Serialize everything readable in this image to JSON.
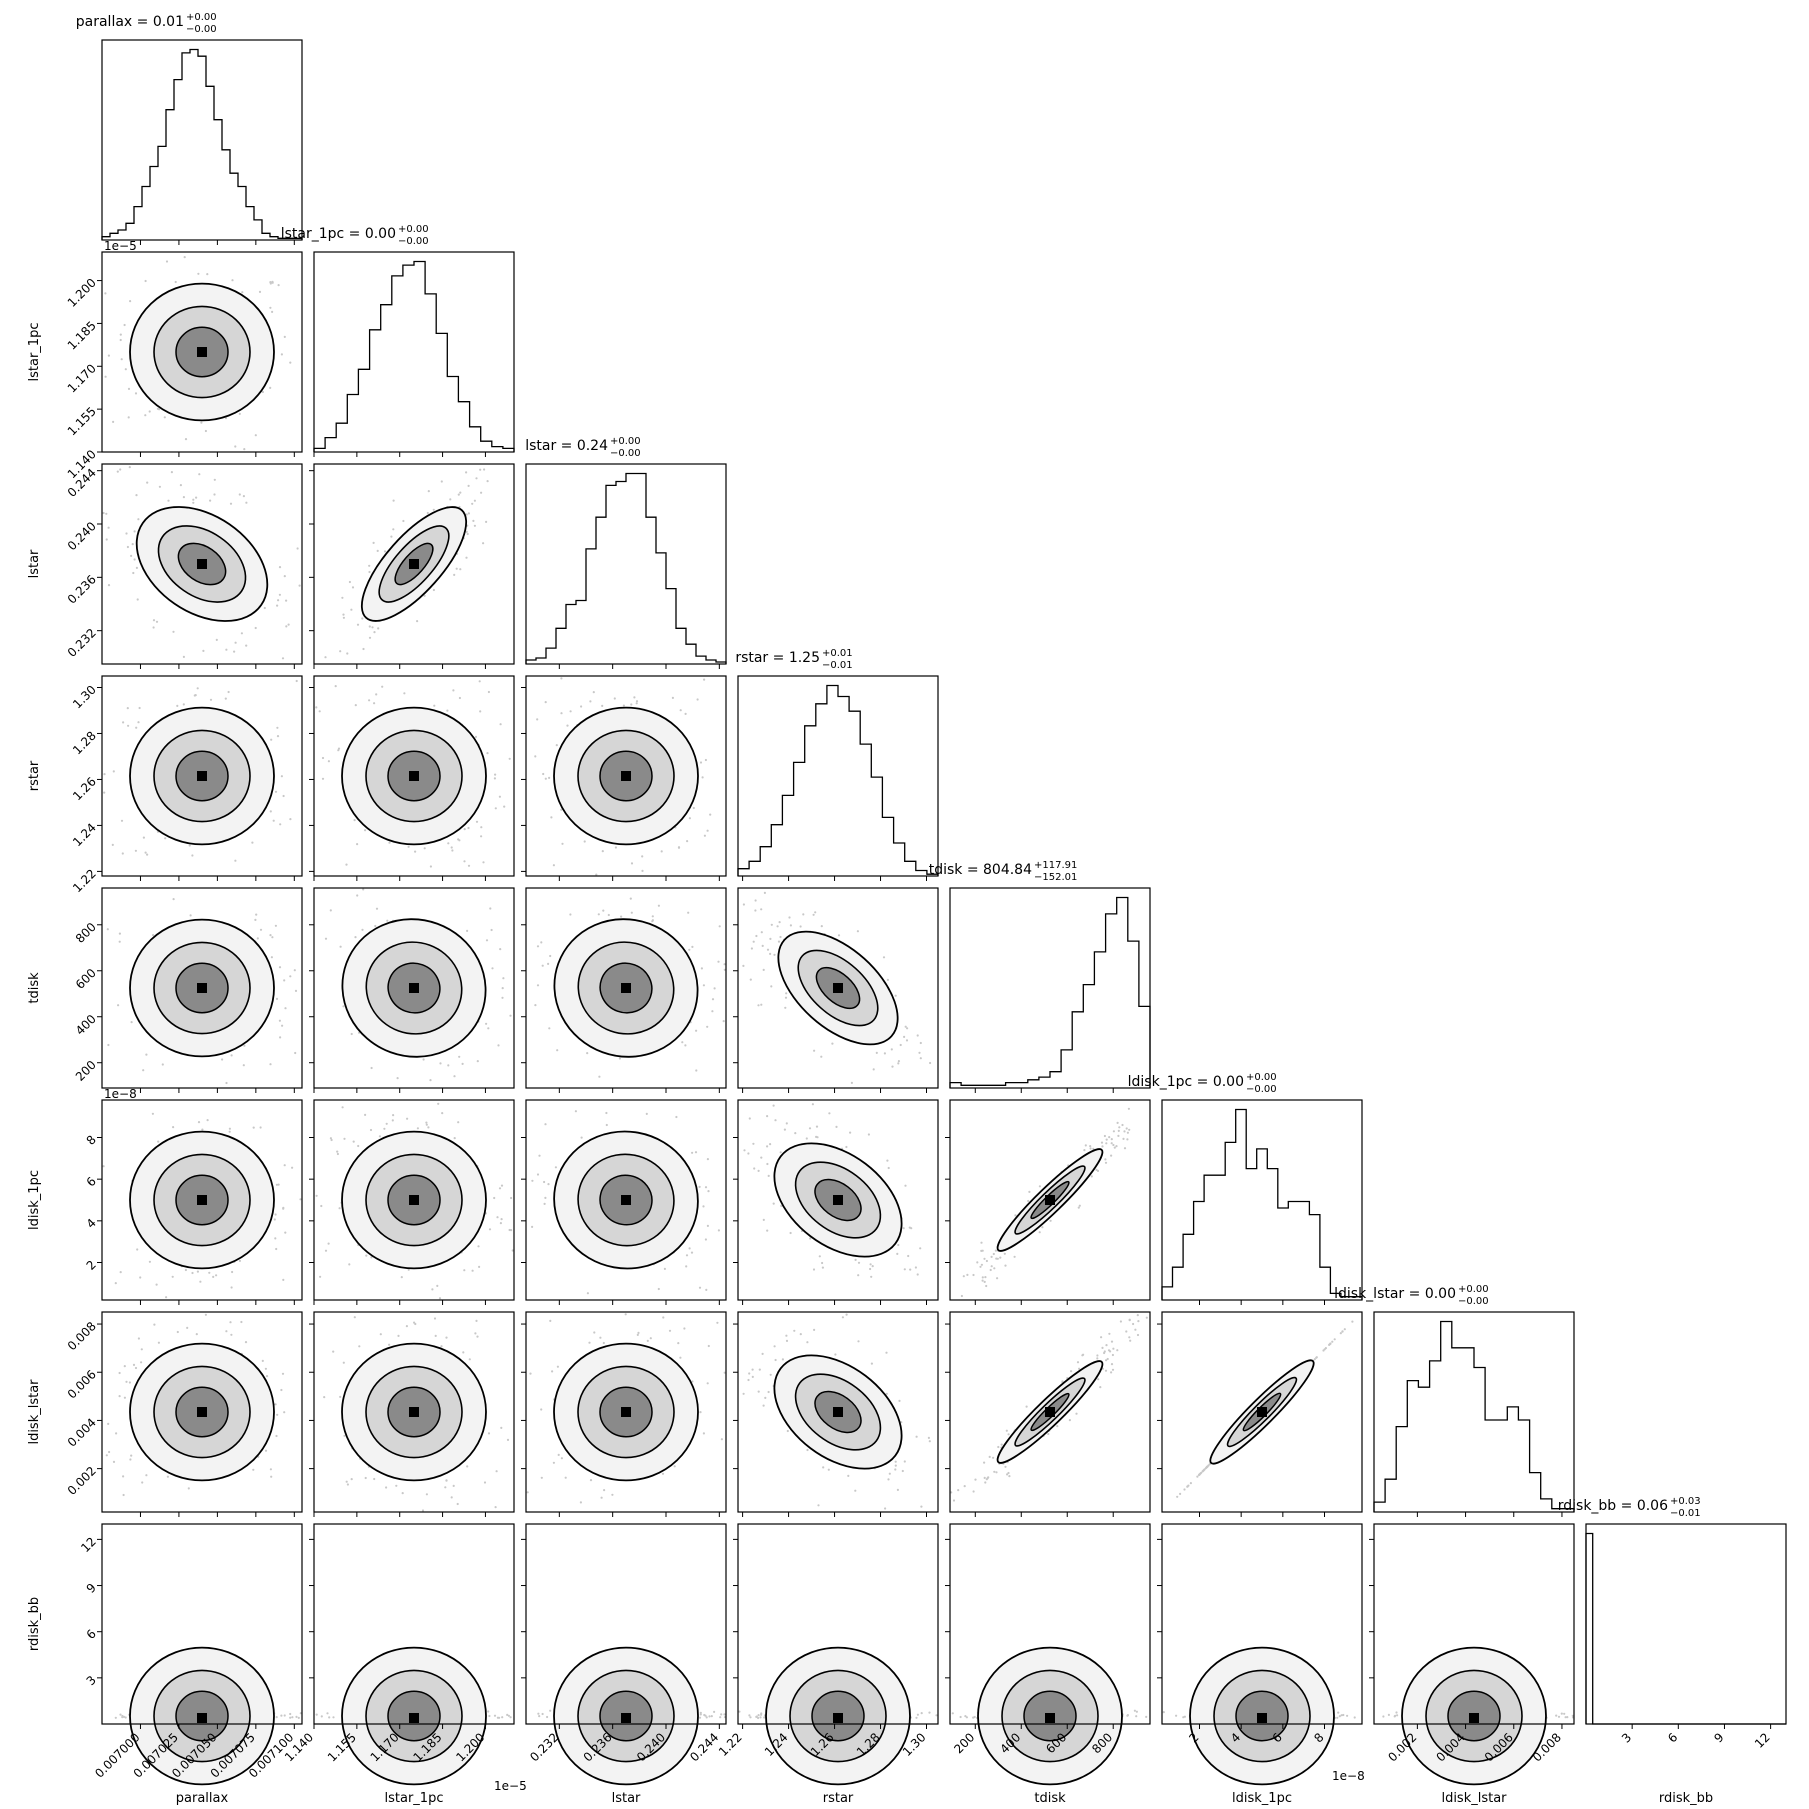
{
  "chart_data": {
    "type": "corner",
    "parameters": [
      {
        "name": "parallax",
        "xlabel": "parallax",
        "ylabel": "",
        "title_main": "parallax = 0.01",
        "sup": "+0.00",
        "sub": "−0.00",
        "range": [
          0.006975,
          0.007105
        ],
        "ticks": [
          "0.007000",
          "0.007025",
          "0.007050",
          "0.007075",
          "0.007100"
        ],
        "tick_values": [
          0.007,
          0.007025,
          0.00705,
          0.007075,
          0.0071
        ],
        "offset": "",
        "hist": [
          2,
          4,
          6,
          10,
          20,
          32,
          44,
          56,
          78,
          96,
          112,
          114,
          110,
          92,
          72,
          54,
          40,
          32,
          20,
          12,
          4,
          2,
          1,
          1,
          1
        ]
      },
      {
        "name": "lstar_1pc",
        "xlabel": "lstar_1pc",
        "ylabel": "lstar_1pc",
        "title_main": "lstar_1pc = 0.00",
        "sup": "+0.00",
        "sub": "−0.00",
        "range": [
          1.14,
          1.21
        ],
        "ticks": [
          "1.140",
          "1.155",
          "1.170",
          "1.185",
          "1.200"
        ],
        "tick_values": [
          1.14,
          1.155,
          1.17,
          1.185,
          1.2
        ],
        "offset": "1e−5",
        "hist": [
          2,
          8,
          16,
          32,
          46,
          68,
          82,
          98,
          104,
          106,
          88,
          66,
          42,
          28,
          14,
          6,
          3,
          2
        ]
      },
      {
        "name": "lstar",
        "xlabel": "lstar",
        "ylabel": "lstar",
        "title_main": "lstar = 0.24",
        "sup": "+0.00",
        "sub": "−0.00",
        "range": [
          0.2295,
          0.2445
        ],
        "ticks": [
          "0.232",
          "0.236",
          "0.240",
          "0.244"
        ],
        "tick_values": [
          0.232,
          0.236,
          0.24,
          0.244
        ],
        "offset": "",
        "hist": [
          2,
          3,
          8,
          18,
          30,
          32,
          58,
          74,
          90,
          92,
          96,
          96,
          74,
          56,
          38,
          18,
          10,
          4,
          2,
          1
        ]
      },
      {
        "name": "rstar",
        "xlabel": "rstar",
        "ylabel": "rstar",
        "title_main": "rstar = 1.25",
        "sup": "+0.01",
        "sub": "−0.01",
        "range": [
          1.218,
          1.305
        ],
        "ticks": [
          "1.22",
          "1.24",
          "1.26",
          "1.28",
          "1.30"
        ],
        "tick_values": [
          1.22,
          1.24,
          1.26,
          1.28,
          1.3
        ],
        "offset": "",
        "hist": [
          4,
          8,
          16,
          28,
          44,
          62,
          82,
          94,
          104,
          98,
          90,
          72,
          54,
          32,
          18,
          8,
          3,
          1
        ]
      },
      {
        "name": "tdisk",
        "xlabel": "tdisk",
        "ylabel": "tdisk",
        "title_main": "tdisk = 804.84",
        "sup": "+117.91",
        "sub": "−152.01",
        "range": [
          90,
          960
        ],
        "ticks": [
          "200",
          "400",
          "600",
          "800"
        ],
        "tick_values": [
          200,
          400,
          600,
          800
        ],
        "offset": "",
        "hist": [
          2,
          1,
          1,
          1,
          1,
          2,
          2,
          3,
          4,
          6,
          14,
          28,
          38,
          50,
          64,
          70,
          54,
          30
        ]
      },
      {
        "name": "ldisk_1pc",
        "xlabel": "ldisk_1pc",
        "ylabel": "ldisk_1pc",
        "title_main": "ldisk_1pc = 0.00",
        "sup": "+0.00",
        "sub": "−0.00",
        "range": [
          0.2,
          9.8
        ],
        "ticks": [
          "2",
          "4",
          "6",
          "8"
        ],
        "tick_values": [
          2,
          4,
          6,
          8
        ],
        "offset": "1e−8",
        "hist": [
          4,
          10,
          20,
          30,
          38,
          38,
          48,
          58,
          40,
          46,
          40,
          28,
          30,
          30,
          26,
          10,
          2,
          1,
          1
        ]
      },
      {
        "name": "ldisk_lstar",
        "xlabel": "ldisk_lstar",
        "ylabel": "ldisk_lstar",
        "title_main": "ldisk_lstar = 0.00",
        "sup": "+0.00",
        "sub": "−0.00",
        "range": [
          0.0002,
          0.0085
        ],
        "ticks": [
          "0.002",
          "0.004",
          "0.006",
          "0.008"
        ],
        "tick_values": [
          0.002,
          0.004,
          0.006,
          0.008
        ],
        "offset": "",
        "hist": [
          3,
          10,
          26,
          40,
          38,
          46,
          58,
          50,
          50,
          44,
          28,
          28,
          32,
          28,
          12,
          4,
          1,
          1
        ]
      },
      {
        "name": "rdisk_bb",
        "xlabel": "rdisk_bb",
        "ylabel": "rdisk_bb",
        "title_main": "rdisk_bb = 0.06",
        "sup": "+0.03",
        "sub": "−0.01",
        "range": [
          0.0,
          13.0
        ],
        "ticks": [
          "3",
          "6",
          "9",
          "12"
        ],
        "tick_values": [
          3,
          6,
          9,
          12
        ],
        "offset": "",
        "hist": [
          120,
          0,
          0,
          0,
          0,
          0,
          0,
          0,
          0,
          0,
          0,
          0,
          0,
          0,
          0,
          0,
          0,
          0,
          0,
          0,
          0,
          0,
          0,
          0,
          0,
          0,
          0,
          0,
          0,
          0
        ]
      }
    ],
    "y_ticks": {
      "lstar_1pc": [
        "1.140",
        "1.155",
        "1.170",
        "1.185",
        "1.200"
      ],
      "lstar": [
        "0.232",
        "0.236",
        "0.240",
        "0.244"
      ],
      "rstar": [
        "1.22",
        "1.24",
        "1.26",
        "1.28",
        "1.30"
      ],
      "tdisk": [
        "200",
        "400",
        "600",
        "800"
      ],
      "ldisk_1pc": [
        "2",
        "4",
        "6",
        "8"
      ],
      "ldisk_lstar": [
        "0.002",
        "0.004",
        "0.006",
        "0.008"
      ],
      "rdisk_bb": [
        "3",
        "6",
        "9",
        "12"
      ]
    },
    "correlations": {
      "lstar_1pc|lstar": 0.85,
      "parallax|lstar": -0.55,
      "rstar|tdisk": -0.7,
      "rstar|ldisk_1pc": -0.6,
      "rstar|ldisk_lstar": -0.6,
      "tdisk|ldisk_1pc": 0.97,
      "tdisk|ldisk_lstar": 0.97,
      "ldisk_1pc|ldisk_lstar": 1.0,
      "lstar_1pc|tdisk": -0.3,
      "lstar|tdisk": -0.3,
      "lstar|ldisk_1pc": -0.15
    },
    "colors": {
      "line": "#000000",
      "density": "#000000",
      "background": "#ffffff"
    }
  }
}
